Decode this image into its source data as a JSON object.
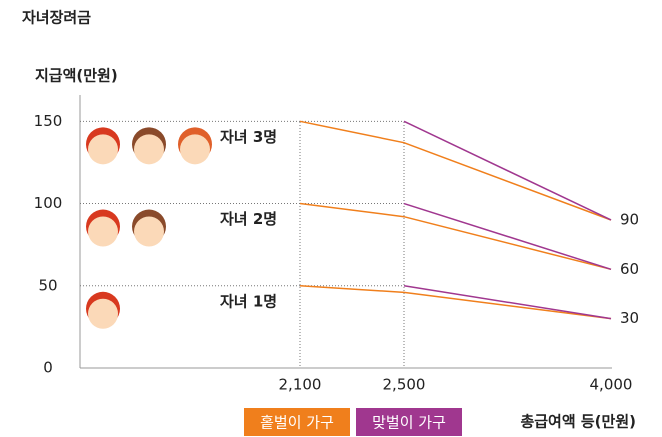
{
  "chart_data": {
    "type": "line",
    "title": "자녀장려금",
    "y_label": "지급액(만원)",
    "x_label": "총급여액 등(만원)",
    "categories": [
      "2,100",
      "2,500",
      "4,000"
    ],
    "ylim": [
      0,
      166
    ],
    "yticks": [
      0,
      50,
      100,
      150
    ],
    "series": [
      {
        "name": "홑벌이 가구",
        "color": "#f07f1c",
        "lines": [
          {
            "label": "자녀 3명",
            "values": [
              150,
              137,
              90
            ]
          },
          {
            "label": "자녀 2명",
            "values": [
              100,
              92,
              60
            ]
          },
          {
            "label": "자녀 1명",
            "values": [
              50,
              46,
              30
            ]
          }
        ]
      },
      {
        "name": "맞벌이 가구",
        "color": "#a0378f",
        "lines": [
          {
            "label": "자녀 3명",
            "values": [
              null,
              150,
              90
            ]
          },
          {
            "label": "자녀 2명",
            "values": [
              null,
              100,
              60
            ]
          },
          {
            "label": "자녀 1명",
            "values": [
              null,
              50,
              30
            ]
          }
        ]
      }
    ]
  }
}
